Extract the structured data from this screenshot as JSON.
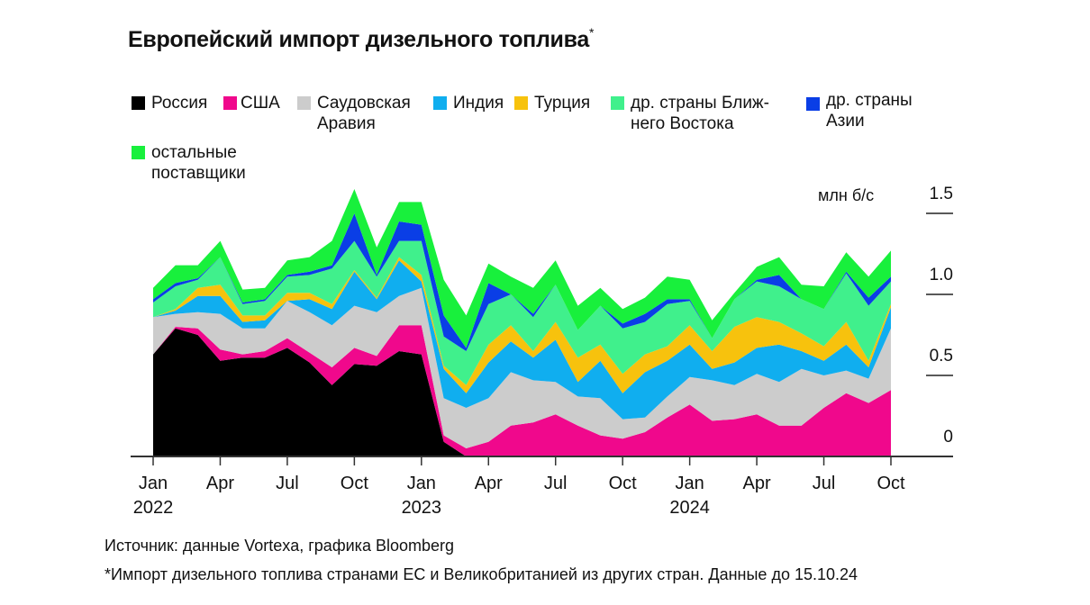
{
  "title": "Европейский импорт дизельного топлива",
  "title_marker": "*",
  "source": "Источник: данные Vortexa, графика Bloomberg",
  "note": "*Импорт дизельного топлива странами ЕС и Великобританией из других стран. Данные до 15.10.24",
  "chart_data": {
    "type": "area",
    "stacked": true,
    "title": "Европейский импорт дизельного топлива",
    "ylabel": "млн б/с",
    "ylim": [
      0,
      1.5
    ],
    "yticks": [
      "0",
      "0.5",
      "1.0",
      "1.5"
    ],
    "ytick_values": [
      0,
      0.5,
      1.0,
      1.5
    ],
    "xtick_labels": [
      {
        "month": "Jan",
        "year": "2022",
        "index": 0
      },
      {
        "month": "Apr",
        "year": "",
        "index": 3
      },
      {
        "month": "Jul",
        "year": "",
        "index": 6
      },
      {
        "month": "Oct",
        "year": "",
        "index": 9
      },
      {
        "month": "Jan",
        "year": "2023",
        "index": 12
      },
      {
        "month": "Apr",
        "year": "",
        "index": 15
      },
      {
        "month": "Jul",
        "year": "",
        "index": 18
      },
      {
        "month": "Oct",
        "year": "",
        "index": 21
      },
      {
        "month": "Jan",
        "year": "2024",
        "index": 24
      },
      {
        "month": "Apr",
        "year": "",
        "index": 27
      },
      {
        "month": "Jul",
        "year": "",
        "index": 30
      },
      {
        "month": "Oct",
        "year": "",
        "index": 33
      }
    ],
    "x": [
      "2022-01",
      "2022-02",
      "2022-03",
      "2022-04",
      "2022-05",
      "2022-06",
      "2022-07",
      "2022-08",
      "2022-09",
      "2022-10",
      "2022-11",
      "2022-12",
      "2023-01",
      "2023-02",
      "2023-03",
      "2023-04",
      "2023-05",
      "2023-06",
      "2023-07",
      "2023-08",
      "2023-09",
      "2023-10",
      "2023-11",
      "2023-12",
      "2024-01",
      "2024-02",
      "2024-03",
      "2024-04",
      "2024-05",
      "2024-06",
      "2024-07",
      "2024-08",
      "2024-09",
      "2024-10"
    ],
    "legend_position": "top",
    "series": [
      {
        "name": "Россия",
        "color": "#000000",
        "values": [
          0.63,
          0.79,
          0.75,
          0.59,
          0.61,
          0.61,
          0.67,
          0.58,
          0.44,
          0.57,
          0.56,
          0.65,
          0.63,
          0.09,
          0,
          0,
          0,
          0,
          0,
          0,
          0,
          0,
          0,
          0,
          0,
          0,
          0,
          0,
          0,
          0,
          0,
          0,
          0,
          0
        ]
      },
      {
        "name": "США",
        "color": "#f0088c",
        "values": [
          0.0,
          0.01,
          0.04,
          0.07,
          0.02,
          0.04,
          0.06,
          0.06,
          0.11,
          0.1,
          0.06,
          0.16,
          0.18,
          0.04,
          0.05,
          0.09,
          0.19,
          0.21,
          0.26,
          0.19,
          0.13,
          0.11,
          0.15,
          0.24,
          0.32,
          0.22,
          0.23,
          0.26,
          0.19,
          0.19,
          0.3,
          0.39,
          0.33,
          0.41
        ]
      },
      {
        "name": "Саудовская Аравия",
        "color": "#cccccc",
        "values": [
          0.23,
          0.08,
          0.1,
          0.22,
          0.16,
          0.14,
          0.23,
          0.25,
          0.26,
          0.26,
          0.27,
          0.18,
          0.23,
          0.23,
          0.25,
          0.27,
          0.33,
          0.26,
          0.2,
          0.18,
          0.23,
          0.12,
          0.09,
          0.13,
          0.17,
          0.25,
          0.21,
          0.25,
          0.27,
          0.35,
          0.2,
          0.14,
          0.15,
          0.38
        ]
      },
      {
        "name": "Индия",
        "color": "#10aeef",
        "values": [
          0.0,
          0.02,
          0.1,
          0.11,
          0.04,
          0.05,
          0.0,
          0.08,
          0.1,
          0.21,
          0.08,
          0.22,
          0.04,
          0.18,
          0.09,
          0.22,
          0.19,
          0.14,
          0.26,
          0.09,
          0.23,
          0.16,
          0.28,
          0.22,
          0.2,
          0.07,
          0.14,
          0.16,
          0.23,
          0.11,
          0.09,
          0.16,
          0.07,
          0.13
        ]
      },
      {
        "name": "Турция",
        "color": "#f7c20d",
        "values": [
          0.0,
          0.01,
          0.05,
          0.07,
          0.04,
          0.03,
          0.05,
          0.04,
          0.03,
          0.01,
          0.01,
          0.02,
          0.04,
          0.02,
          0.05,
          0.11,
          0.1,
          0.04,
          0.11,
          0.15,
          0.1,
          0.12,
          0.11,
          0.09,
          0.12,
          0.11,
          0.22,
          0.19,
          0.14,
          0.11,
          0.09,
          0.14,
          0.04,
          0.02
        ]
      },
      {
        "name": "др. страны Ближнего Востока",
        "color": "#40f08c",
        "values": [
          0.09,
          0.14,
          0.05,
          0.17,
          0.07,
          0.09,
          0.1,
          0.11,
          0.22,
          0.18,
          0.13,
          0.1,
          0.21,
          0.18,
          0.21,
          0.25,
          0.19,
          0.21,
          0.23,
          0.17,
          0.24,
          0.28,
          0.2,
          0.26,
          0.15,
          0.08,
          0.17,
          0.22,
          0.22,
          0.21,
          0.23,
          0.3,
          0.34,
          0.14
        ]
      },
      {
        "name": "др. страны Азии",
        "color": "#0a3ee6",
        "values": [
          0.02,
          0.02,
          0.01,
          0.0,
          0.01,
          0.01,
          0.01,
          0.02,
          0.02,
          0.17,
          0.01,
          0.12,
          0.1,
          0.13,
          0.02,
          0.13,
          0.0,
          0.02,
          0.0,
          0.0,
          0.0,
          0.03,
          0.05,
          0.03,
          0.01,
          0.0,
          0.0,
          0.01,
          0.07,
          0.0,
          0.0,
          0.01,
          0.05,
          0.03
        ]
      },
      {
        "name": "остальные поставщики",
        "color": "#18f03c",
        "values": [
          0.07,
          0.11,
          0.08,
          0.1,
          0.08,
          0.07,
          0.09,
          0.09,
          0.15,
          0.15,
          0.17,
          0.12,
          0.14,
          0.22,
          0.2,
          0.12,
          0.11,
          0.16,
          0.15,
          0.15,
          0.11,
          0.09,
          0.1,
          0.14,
          0.12,
          0.11,
          0.04,
          0.08,
          0.11,
          0.09,
          0.14,
          0.12,
          0.13,
          0.16
        ]
      }
    ]
  },
  "legend": [
    {
      "label": "Россия",
      "color": "#000000"
    },
    {
      "label": "США",
      "color": "#f0088c"
    },
    {
      "label": "Саудовская Аравия",
      "line1": "Саудовская",
      "line2": "Аравия",
      "color": "#cccccc"
    },
    {
      "label": "Индия",
      "color": "#10aeef"
    },
    {
      "label": "Турция",
      "color": "#f7c20d"
    },
    {
      "label": "др. страны Ближнего Востока",
      "line1": "др. страны Ближ-",
      "line2": "него Востока",
      "color": "#40f08c"
    },
    {
      "label": "др. страны Азии",
      "line1": "др. страны",
      "line2": "Азии",
      "color": "#0a3ee6"
    },
    {
      "label": "остальные поставщики",
      "line1": "остальные",
      "line2": "поставщики",
      "color": "#18f03c"
    }
  ]
}
